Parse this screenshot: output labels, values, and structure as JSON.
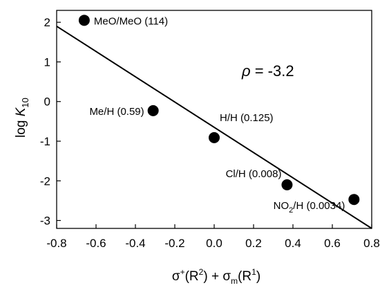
{
  "chart_data": {
    "type": "scatter",
    "xlim": [
      -0.8,
      0.8
    ],
    "ylim": [
      -3.2,
      2.3
    ],
    "x_ticks": [
      -0.8,
      -0.6,
      -0.4,
      -0.2,
      0.0,
      0.2,
      0.4,
      0.6,
      0.8
    ],
    "x_tick_labels": [
      "-0.8",
      "-0.6",
      "-0.4",
      "-0.2",
      "0.0",
      "0.2",
      "0.4",
      "0.6",
      "0.8"
    ],
    "y_ticks": [
      -3,
      -2,
      -1,
      0,
      1,
      2
    ],
    "y_tick_labels": [
      "-3",
      "-2",
      "-1",
      "0",
      "1",
      "2"
    ],
    "xlabel": {
      "a": "σ",
      "a_sup": "+",
      "b": "(R",
      "b_sup": "2",
      "c": ") + σ",
      "c_sub": "m",
      "d": "(R",
      "d_sup": "1",
      "e": ")"
    },
    "ylabel": {
      "a": "log ",
      "b": "K",
      "c": "10"
    },
    "points": [
      {
        "x": -0.66,
        "y": 2.05,
        "label": "MeO/MeO (114)"
      },
      {
        "x": -0.31,
        "y": -0.23,
        "label": "Me/H (0.59)"
      },
      {
        "x": 0.0,
        "y": -0.91,
        "label": "H/H (0.125)"
      },
      {
        "x": 0.37,
        "y": -2.1,
        "label": "Cl/H (0.008)"
      },
      {
        "x": 0.71,
        "y": -2.47,
        "label_main": "NO",
        "label_sub": "2",
        "label_rest": "/H (0.0034)"
      }
    ],
    "fit_line": {
      "x": [
        -0.8,
        0.8
      ],
      "y": [
        1.9,
        -3.2
      ]
    },
    "annotation": {
      "symbol": "ρ",
      "text": " = -3.2"
    },
    "grid": false,
    "legend": "none"
  }
}
